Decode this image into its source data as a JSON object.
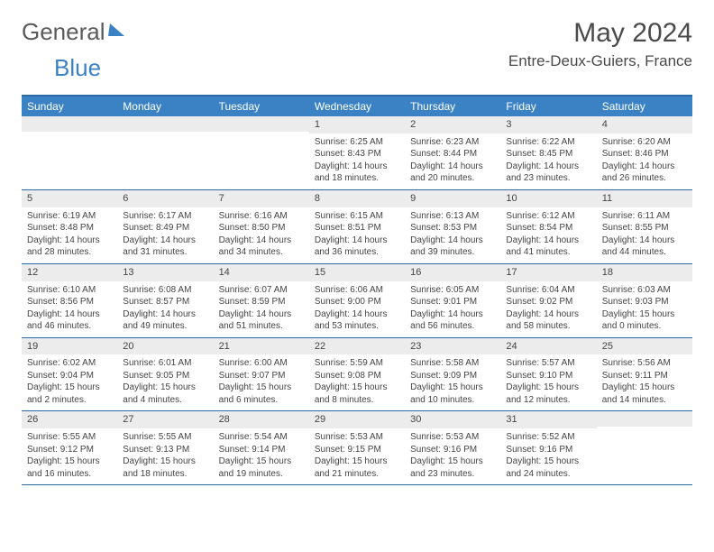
{
  "brand": {
    "part1": "General",
    "part2": "Blue"
  },
  "title": "May 2024",
  "location": "Entre-Deux-Guiers, France",
  "colors": {
    "header_bg": "#3b82c4",
    "border": "#2d6aa3",
    "daynum_bg": "#ececec",
    "text": "#444444",
    "background": "#ffffff"
  },
  "weekdays": [
    "Sunday",
    "Monday",
    "Tuesday",
    "Wednesday",
    "Thursday",
    "Friday",
    "Saturday"
  ],
  "weeks": [
    [
      null,
      null,
      null,
      {
        "n": "1",
        "sr": "Sunrise: 6:25 AM",
        "ss": "Sunset: 8:43 PM",
        "d1": "Daylight: 14 hours",
        "d2": "and 18 minutes."
      },
      {
        "n": "2",
        "sr": "Sunrise: 6:23 AM",
        "ss": "Sunset: 8:44 PM",
        "d1": "Daylight: 14 hours",
        "d2": "and 20 minutes."
      },
      {
        "n": "3",
        "sr": "Sunrise: 6:22 AM",
        "ss": "Sunset: 8:45 PM",
        "d1": "Daylight: 14 hours",
        "d2": "and 23 minutes."
      },
      {
        "n": "4",
        "sr": "Sunrise: 6:20 AM",
        "ss": "Sunset: 8:46 PM",
        "d1": "Daylight: 14 hours",
        "d2": "and 26 minutes."
      }
    ],
    [
      {
        "n": "5",
        "sr": "Sunrise: 6:19 AM",
        "ss": "Sunset: 8:48 PM",
        "d1": "Daylight: 14 hours",
        "d2": "and 28 minutes."
      },
      {
        "n": "6",
        "sr": "Sunrise: 6:17 AM",
        "ss": "Sunset: 8:49 PM",
        "d1": "Daylight: 14 hours",
        "d2": "and 31 minutes."
      },
      {
        "n": "7",
        "sr": "Sunrise: 6:16 AM",
        "ss": "Sunset: 8:50 PM",
        "d1": "Daylight: 14 hours",
        "d2": "and 34 minutes."
      },
      {
        "n": "8",
        "sr": "Sunrise: 6:15 AM",
        "ss": "Sunset: 8:51 PM",
        "d1": "Daylight: 14 hours",
        "d2": "and 36 minutes."
      },
      {
        "n": "9",
        "sr": "Sunrise: 6:13 AM",
        "ss": "Sunset: 8:53 PM",
        "d1": "Daylight: 14 hours",
        "d2": "and 39 minutes."
      },
      {
        "n": "10",
        "sr": "Sunrise: 6:12 AM",
        "ss": "Sunset: 8:54 PM",
        "d1": "Daylight: 14 hours",
        "d2": "and 41 minutes."
      },
      {
        "n": "11",
        "sr": "Sunrise: 6:11 AM",
        "ss": "Sunset: 8:55 PM",
        "d1": "Daylight: 14 hours",
        "d2": "and 44 minutes."
      }
    ],
    [
      {
        "n": "12",
        "sr": "Sunrise: 6:10 AM",
        "ss": "Sunset: 8:56 PM",
        "d1": "Daylight: 14 hours",
        "d2": "and 46 minutes."
      },
      {
        "n": "13",
        "sr": "Sunrise: 6:08 AM",
        "ss": "Sunset: 8:57 PM",
        "d1": "Daylight: 14 hours",
        "d2": "and 49 minutes."
      },
      {
        "n": "14",
        "sr": "Sunrise: 6:07 AM",
        "ss": "Sunset: 8:59 PM",
        "d1": "Daylight: 14 hours",
        "d2": "and 51 minutes."
      },
      {
        "n": "15",
        "sr": "Sunrise: 6:06 AM",
        "ss": "Sunset: 9:00 PM",
        "d1": "Daylight: 14 hours",
        "d2": "and 53 minutes."
      },
      {
        "n": "16",
        "sr": "Sunrise: 6:05 AM",
        "ss": "Sunset: 9:01 PM",
        "d1": "Daylight: 14 hours",
        "d2": "and 56 minutes."
      },
      {
        "n": "17",
        "sr": "Sunrise: 6:04 AM",
        "ss": "Sunset: 9:02 PM",
        "d1": "Daylight: 14 hours",
        "d2": "and 58 minutes."
      },
      {
        "n": "18",
        "sr": "Sunrise: 6:03 AM",
        "ss": "Sunset: 9:03 PM",
        "d1": "Daylight: 15 hours",
        "d2": "and 0 minutes."
      }
    ],
    [
      {
        "n": "19",
        "sr": "Sunrise: 6:02 AM",
        "ss": "Sunset: 9:04 PM",
        "d1": "Daylight: 15 hours",
        "d2": "and 2 minutes."
      },
      {
        "n": "20",
        "sr": "Sunrise: 6:01 AM",
        "ss": "Sunset: 9:05 PM",
        "d1": "Daylight: 15 hours",
        "d2": "and 4 minutes."
      },
      {
        "n": "21",
        "sr": "Sunrise: 6:00 AM",
        "ss": "Sunset: 9:07 PM",
        "d1": "Daylight: 15 hours",
        "d2": "and 6 minutes."
      },
      {
        "n": "22",
        "sr": "Sunrise: 5:59 AM",
        "ss": "Sunset: 9:08 PM",
        "d1": "Daylight: 15 hours",
        "d2": "and 8 minutes."
      },
      {
        "n": "23",
        "sr": "Sunrise: 5:58 AM",
        "ss": "Sunset: 9:09 PM",
        "d1": "Daylight: 15 hours",
        "d2": "and 10 minutes."
      },
      {
        "n": "24",
        "sr": "Sunrise: 5:57 AM",
        "ss": "Sunset: 9:10 PM",
        "d1": "Daylight: 15 hours",
        "d2": "and 12 minutes."
      },
      {
        "n": "25",
        "sr": "Sunrise: 5:56 AM",
        "ss": "Sunset: 9:11 PM",
        "d1": "Daylight: 15 hours",
        "d2": "and 14 minutes."
      }
    ],
    [
      {
        "n": "26",
        "sr": "Sunrise: 5:55 AM",
        "ss": "Sunset: 9:12 PM",
        "d1": "Daylight: 15 hours",
        "d2": "and 16 minutes."
      },
      {
        "n": "27",
        "sr": "Sunrise: 5:55 AM",
        "ss": "Sunset: 9:13 PM",
        "d1": "Daylight: 15 hours",
        "d2": "and 18 minutes."
      },
      {
        "n": "28",
        "sr": "Sunrise: 5:54 AM",
        "ss": "Sunset: 9:14 PM",
        "d1": "Daylight: 15 hours",
        "d2": "and 19 minutes."
      },
      {
        "n": "29",
        "sr": "Sunrise: 5:53 AM",
        "ss": "Sunset: 9:15 PM",
        "d1": "Daylight: 15 hours",
        "d2": "and 21 minutes."
      },
      {
        "n": "30",
        "sr": "Sunrise: 5:53 AM",
        "ss": "Sunset: 9:16 PM",
        "d1": "Daylight: 15 hours",
        "d2": "and 23 minutes."
      },
      {
        "n": "31",
        "sr": "Sunrise: 5:52 AM",
        "ss": "Sunset: 9:16 PM",
        "d1": "Daylight: 15 hours",
        "d2": "and 24 minutes."
      },
      null
    ]
  ]
}
